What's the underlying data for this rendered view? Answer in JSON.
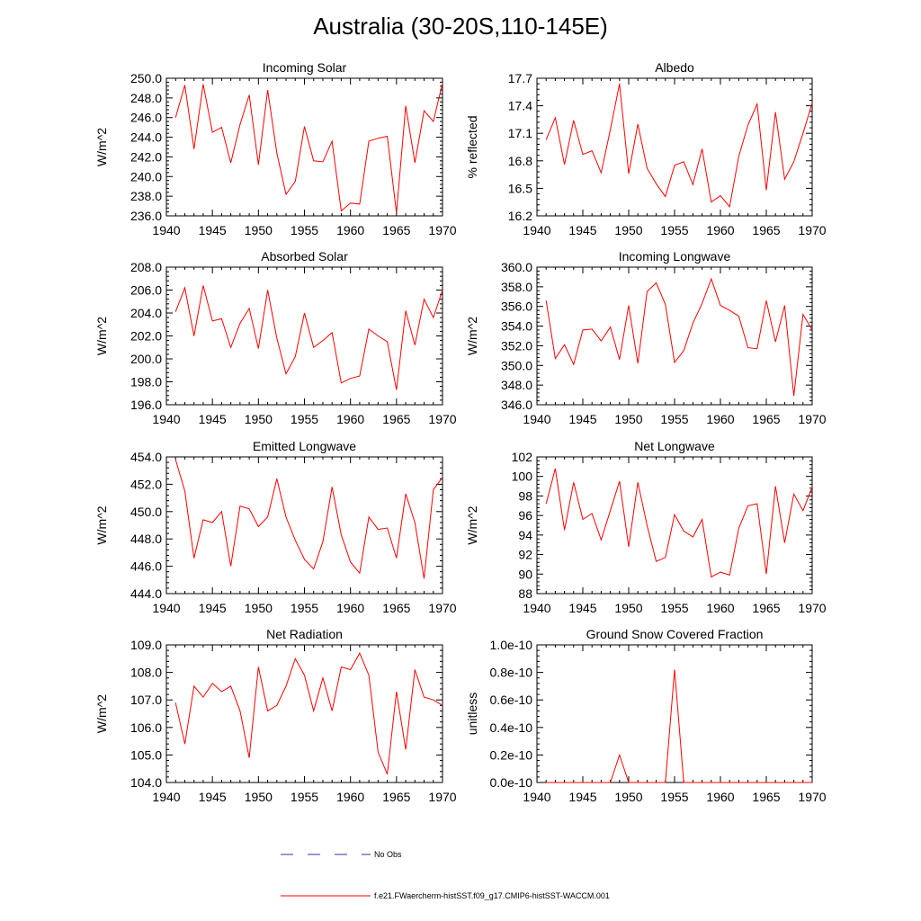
{
  "title": "Australia (30-20S,110-145E)",
  "colors": {
    "model": "#ff0000",
    "obs": "#3333aa",
    "axis": "#000000"
  },
  "legend": {
    "obs_label": "No Obs",
    "model_label": "f.e21.FWaercherm-histSST.f09_g17.CMIP6-histSST-WACCM.001"
  },
  "chart_data": [
    {
      "type": "line",
      "title": "Incoming Solar",
      "ylabel": "W/m^2",
      "xlim": [
        1940,
        1970
      ],
      "ylim": [
        236.0,
        250.0
      ],
      "xticks": [
        "1940",
        "1945",
        "1950",
        "1955",
        "1960",
        "1965",
        "1970"
      ],
      "yticks": [
        "236.0",
        "238.0",
        "240.0",
        "242.0",
        "244.0",
        "246.0",
        "248.0",
        "250.0"
      ],
      "x": [
        1941,
        1942,
        1943,
        1944,
        1945,
        1946,
        1947,
        1948,
        1949,
        1950,
        1951,
        1952,
        1953,
        1954,
        1955,
        1956,
        1957,
        1958,
        1959,
        1960,
        1961,
        1962,
        1963,
        1964,
        1965,
        1966,
        1967,
        1968,
        1969,
        1970
      ],
      "series": [
        {
          "values": [
            246.0,
            249.3,
            242.8,
            249.4,
            244.5,
            245.0,
            241.4,
            245.3,
            248.3,
            241.2,
            248.8,
            242.4,
            238.2,
            239.5,
            245.1,
            241.6,
            241.5,
            243.6,
            236.5,
            237.3,
            237.2,
            243.6,
            243.9,
            244.1,
            236.3,
            247.2,
            241.4,
            246.7,
            245.6,
            249.5
          ]
        }
      ]
    },
    {
      "type": "line",
      "title": "Albedo",
      "ylabel": "% reflected",
      "xlim": [
        1940,
        1970
      ],
      "ylim": [
        16.2,
        17.7
      ],
      "xticks": [
        "1940",
        "1945",
        "1950",
        "1955",
        "1960",
        "1965",
        "1970"
      ],
      "yticks": [
        "16.2",
        "16.5",
        "16.8",
        "17.1",
        "17.4",
        "17.7"
      ],
      "x": [
        1941,
        1942,
        1943,
        1944,
        1945,
        1946,
        1947,
        1948,
        1949,
        1950,
        1951,
        1952,
        1953,
        1954,
        1955,
        1956,
        1957,
        1958,
        1959,
        1960,
        1961,
        1962,
        1963,
        1964,
        1965,
        1966,
        1967,
        1968,
        1969,
        1970
      ],
      "series": [
        {
          "values": [
            17.03,
            17.27,
            16.76,
            17.24,
            16.87,
            16.91,
            16.67,
            17.14,
            17.64,
            16.66,
            17.2,
            16.72,
            16.55,
            16.41,
            16.75,
            16.79,
            16.54,
            16.93,
            16.35,
            16.42,
            16.3,
            16.85,
            17.19,
            17.42,
            16.48,
            17.33,
            16.6,
            16.79,
            17.1,
            17.43
          ]
        }
      ]
    },
    {
      "type": "line",
      "title": "Absorbed Solar",
      "ylabel": "W/m^2",
      "xlim": [
        1940,
        1970
      ],
      "ylim": [
        196.0,
        208.0
      ],
      "xticks": [
        "1940",
        "1945",
        "1950",
        "1955",
        "1960",
        "1965",
        "1970"
      ],
      "yticks": [
        "196.0",
        "198.0",
        "200.0",
        "202.0",
        "204.0",
        "206.0",
        "208.0"
      ],
      "x": [
        1941,
        1942,
        1943,
        1944,
        1945,
        1946,
        1947,
        1948,
        1949,
        1950,
        1951,
        1952,
        1953,
        1954,
        1955,
        1956,
        1957,
        1958,
        1959,
        1960,
        1961,
        1962,
        1963,
        1964,
        1965,
        1966,
        1967,
        1968,
        1969,
        1970
      ],
      "series": [
        {
          "values": [
            204.1,
            206.2,
            202.0,
            206.4,
            203.3,
            203.5,
            201.0,
            203.1,
            204.4,
            200.9,
            206.0,
            201.8,
            198.7,
            200.2,
            204.0,
            201.0,
            201.6,
            202.3,
            197.9,
            198.3,
            198.5,
            202.6,
            202.0,
            201.5,
            197.3,
            204.2,
            201.2,
            205.2,
            203.6,
            206.0
          ]
        }
      ]
    },
    {
      "type": "line",
      "title": "Incoming Longwave",
      "ylabel": "W/m^2",
      "xlim": [
        1940,
        1970
      ],
      "ylim": [
        346.0,
        360.0
      ],
      "xticks": [
        "1940",
        "1945",
        "1950",
        "1955",
        "1960",
        "1965",
        "1970"
      ],
      "yticks": [
        "346.0",
        "348.0",
        "350.0",
        "352.0",
        "354.0",
        "356.0",
        "358.0",
        "360.0"
      ],
      "x": [
        1941,
        1942,
        1943,
        1944,
        1945,
        1946,
        1947,
        1948,
        1949,
        1950,
        1951,
        1952,
        1953,
        1954,
        1955,
        1956,
        1957,
        1958,
        1959,
        1960,
        1961,
        1962,
        1963,
        1964,
        1965,
        1966,
        1967,
        1968,
        1969,
        1970
      ],
      "series": [
        {
          "values": [
            356.6,
            350.7,
            352.1,
            350.1,
            353.6,
            353.7,
            352.5,
            353.9,
            350.6,
            356.1,
            350.2,
            357.5,
            358.4,
            356.2,
            350.3,
            351.5,
            354.3,
            356.3,
            358.8,
            356.1,
            355.6,
            355.0,
            351.8,
            351.7,
            356.6,
            352.4,
            356.1,
            346.9,
            355.2,
            353.6
          ]
        }
      ]
    },
    {
      "type": "line",
      "title": "Emitted Longwave",
      "ylabel": "W/m^2",
      "xlim": [
        1940,
        1970
      ],
      "ylim": [
        444.0,
        454.0
      ],
      "xticks": [
        "1940",
        "1945",
        "1950",
        "1955",
        "1960",
        "1965",
        "1970"
      ],
      "yticks": [
        "444.0",
        "446.0",
        "448.0",
        "450.0",
        "452.0",
        "454.0"
      ],
      "x": [
        1941,
        1942,
        1943,
        1944,
        1945,
        1946,
        1947,
        1948,
        1949,
        1950,
        1951,
        1952,
        1953,
        1954,
        1955,
        1956,
        1957,
        1958,
        1959,
        1960,
        1961,
        1962,
        1963,
        1964,
        1965,
        1966,
        1967,
        1968,
        1969,
        1970
      ],
      "series": [
        {
          "values": [
            453.8,
            451.5,
            446.6,
            449.4,
            449.2,
            450.0,
            446.0,
            450.4,
            450.2,
            448.9,
            449.6,
            452.4,
            449.6,
            447.9,
            446.5,
            445.8,
            447.8,
            451.8,
            448.3,
            446.3,
            445.5,
            449.6,
            448.7,
            448.8,
            446.6,
            451.3,
            449.2,
            445.1,
            451.6,
            452.5
          ]
        }
      ]
    },
    {
      "type": "line",
      "title": "Net Longwave",
      "ylabel": "W/m^2",
      "xlim": [
        1940,
        1970
      ],
      "ylim": [
        88,
        102
      ],
      "xticks": [
        "1940",
        "1945",
        "1950",
        "1955",
        "1960",
        "1965",
        "1970"
      ],
      "yticks": [
        "88",
        "90",
        "92",
        "94",
        "96",
        "98",
        "100",
        "102"
      ],
      "x": [
        1941,
        1942,
        1943,
        1944,
        1945,
        1946,
        1947,
        1948,
        1949,
        1950,
        1951,
        1952,
        1953,
        1954,
        1955,
        1956,
        1957,
        1958,
        1959,
        1960,
        1961,
        1962,
        1963,
        1964,
        1965,
        1966,
        1967,
        1968,
        1969,
        1970
      ],
      "series": [
        {
          "values": [
            97.2,
            100.8,
            94.5,
            99.4,
            95.6,
            96.2,
            93.5,
            96.5,
            99.5,
            92.8,
            99.4,
            95.0,
            91.3,
            91.7,
            96.1,
            94.4,
            93.8,
            95.6,
            89.7,
            90.2,
            89.9,
            94.7,
            97.0,
            97.2,
            90.0,
            99.0,
            93.2,
            98.2,
            96.5,
            98.9
          ]
        }
      ]
    },
    {
      "type": "line",
      "title": "Net Radiation",
      "ylabel": "W/m^2",
      "xlim": [
        1940,
        1970
      ],
      "ylim": [
        104.0,
        109.0
      ],
      "xticks": [
        "1940",
        "1945",
        "1950",
        "1955",
        "1960",
        "1965",
        "1970"
      ],
      "yticks": [
        "104.0",
        "105.0",
        "106.0",
        "107.0",
        "108.0",
        "109.0"
      ],
      "x": [
        1941,
        1942,
        1943,
        1944,
        1945,
        1946,
        1947,
        1948,
        1949,
        1950,
        1951,
        1952,
        1953,
        1954,
        1955,
        1956,
        1957,
        1958,
        1959,
        1960,
        1961,
        1962,
        1963,
        1964,
        1965,
        1966,
        1967,
        1968,
        1969,
        1970
      ],
      "series": [
        {
          "values": [
            106.9,
            105.4,
            107.5,
            107.1,
            107.6,
            107.3,
            107.5,
            106.6,
            104.9,
            108.2,
            106.6,
            106.8,
            107.5,
            108.5,
            107.9,
            106.6,
            107.8,
            106.6,
            108.2,
            108.1,
            108.7,
            107.9,
            105.1,
            104.3,
            107.3,
            105.2,
            108.1,
            107.1,
            107.0,
            106.8
          ]
        }
      ]
    },
    {
      "type": "line",
      "title": "Ground Snow Covered Fraction",
      "ylabel": "unitless",
      "xlim": [
        1940,
        1970
      ],
      "ylim": [
        0.0,
        1.0
      ],
      "xticks": [
        "1940",
        "1945",
        "1950",
        "1955",
        "1960",
        "1965",
        "1970"
      ],
      "yticks": [
        "0.0e-10",
        "0.2e-10",
        "0.4e-10",
        "0.6e-10",
        "0.8e-10",
        "1.0e-10"
      ],
      "x": [
        1941,
        1942,
        1943,
        1944,
        1945,
        1946,
        1947,
        1948,
        1949,
        1950,
        1951,
        1952,
        1953,
        1954,
        1955,
        1956,
        1957,
        1958,
        1959,
        1960,
        1961,
        1962,
        1963,
        1964,
        1965,
        1966,
        1967,
        1968,
        1969,
        1970
      ],
      "series": [
        {
          "values": [
            0,
            0,
            0,
            0,
            0,
            0,
            0,
            0,
            0.2,
            0,
            0,
            0,
            0,
            0,
            0.82,
            0,
            0,
            0,
            0,
            0,
            0,
            0,
            0,
            0,
            0,
            0,
            0,
            0,
            0,
            0
          ]
        }
      ]
    }
  ]
}
